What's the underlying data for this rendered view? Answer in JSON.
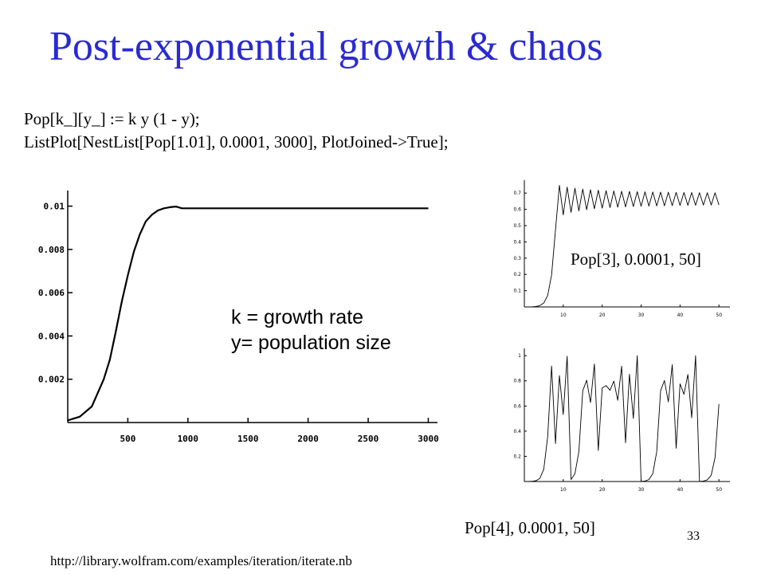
{
  "slide": {
    "title": "Post-exponential growth & chaos",
    "code_lines": [
      "Pop[k_][y_] := k y (1 - y);",
      "ListPlot[NestList[Pop[1.01], 0.0001, 3000], PlotJoined->True];"
    ],
    "note_lines": [
      "k = growth rate",
      "y= population size"
    ],
    "label_pop3": "Pop[3], 0.0001, 50]",
    "label_pop4": "Pop[4], 0.0001, 50]",
    "url": "http://library.wolfram.com/examples/iteration/iterate.nb",
    "slide_number": "33"
  },
  "chart_data": [
    {
      "type": "line",
      "title": "",
      "xlabel": "",
      "ylabel": "",
      "xlim": [
        0,
        3050
      ],
      "ylim": [
        0,
        0.0105
      ],
      "x_ticks": [
        500,
        1000,
        1500,
        2000,
        2500,
        3000
      ],
      "x_tick_labels": [
        "500",
        "1000",
        "1500",
        "2000",
        "2500",
        "3000"
      ],
      "y_ticks": [
        0.002,
        0.004,
        0.006,
        0.008,
        0.01
      ],
      "y_tick_labels": [
        "0.002",
        "0.004",
        "0.006",
        "0.008",
        "0.01"
      ],
      "series": [
        {
          "x": [
            0,
            100,
            200,
            300,
            350,
            400,
            450,
            500,
            550,
            600,
            650,
            700,
            750,
            800,
            850,
            900,
            950,
            1000,
            1100,
            1200,
            1500,
            2000,
            2500,
            3000
          ],
          "y": [
            0.0001,
            0.00027,
            0.00074,
            0.002,
            0.0029,
            0.0042,
            0.0056,
            0.0068,
            0.0079,
            0.0087,
            0.0093,
            0.0096,
            0.0098,
            0.0099,
            0.00995,
            0.00998,
            0.0099,
            0.0099,
            0.0099,
            0.0099,
            0.0099,
            0.0099,
            0.0099,
            0.0099
          ]
        }
      ],
      "grid": false
    },
    {
      "type": "line",
      "title": "",
      "xlim": [
        0,
        52
      ],
      "ylim": [
        0,
        0.75
      ],
      "x_ticks": [
        10,
        20,
        30,
        40,
        50
      ],
      "x_tick_labels": [
        "10",
        "20",
        "30",
        "40",
        "50"
      ],
      "y_ticks": [
        0.1,
        0.2,
        0.3,
        0.4,
        0.5,
        0.6,
        0.7
      ],
      "y_tick_labels": [
        "0.1",
        "0.2",
        "0.3",
        "0.4",
        "0.5",
        "0.6",
        "0.7"
      ],
      "series": [
        {
          "x": [
            0,
            1,
            2,
            3,
            4,
            5,
            6,
            7,
            8,
            9,
            10,
            11,
            12,
            13,
            14,
            15,
            16,
            17,
            18,
            19,
            20,
            21,
            22,
            23,
            24,
            25,
            26,
            27,
            28,
            29,
            30,
            31,
            32,
            33,
            34,
            35,
            36,
            37,
            38,
            39,
            40,
            41,
            42,
            43,
            44,
            45,
            46,
            47,
            48,
            49,
            50
          ],
          "y": [
            0.0001,
            0.0003,
            0.0009,
            0.0027,
            0.0081,
            0.0241,
            0.0706,
            0.197,
            0.4745,
            0.7479,
            0.5657,
            0.737,
            0.5815,
            0.7299,
            0.5909,
            0.7249,
            0.5982,
            0.7208,
            0.6036,
            0.7178,
            0.6074,
            0.7154,
            0.6106,
            0.7133,
            0.6131,
            0.7116,
            0.6152,
            0.7101,
            0.6171,
            0.7089,
            0.6186,
            0.7078,
            0.6199,
            0.7069,
            0.6211,
            0.706,
            0.6221,
            0.7053,
            0.623,
            0.7046,
            0.6238,
            0.704,
            0.6245,
            0.7035,
            0.6252,
            0.703,
            0.6258,
            0.7025,
            0.6263,
            0.7021,
            0.6268
          ]
        }
      ],
      "grid": false
    },
    {
      "type": "line",
      "title": "",
      "xlim": [
        0,
        52
      ],
      "ylim": [
        0,
        1.02
      ],
      "x_ticks": [
        10,
        20,
        30,
        40,
        50
      ],
      "x_tick_labels": [
        "10",
        "20",
        "30",
        "40",
        "50"
      ],
      "y_ticks": [
        0.2,
        0.4,
        0.6,
        0.8,
        1
      ],
      "y_tick_labels": [
        "0.2",
        "0.4",
        "0.6",
        "0.8",
        "1"
      ],
      "series": [
        {
          "x": [
            0,
            1,
            2,
            3,
            4,
            5,
            6,
            7,
            8,
            9,
            10,
            11,
            12,
            13,
            14,
            15,
            16,
            17,
            18,
            19,
            20,
            21,
            22,
            23,
            24,
            25,
            26,
            27,
            28,
            29,
            30,
            31,
            32,
            33,
            34,
            35,
            36,
            37,
            38,
            39,
            40,
            41,
            42,
            43,
            44,
            45,
            46,
            47,
            48,
            49,
            50
          ],
          "y": [
            0.0001,
            0.0004,
            0.0016,
            0.0064,
            0.0254,
            0.099,
            0.357,
            0.918,
            0.301,
            0.842,
            0.532,
            0.996,
            0.016,
            0.063,
            0.236,
            0.721,
            0.805,
            0.628,
            0.934,
            0.247,
            0.744,
            0.762,
            0.725,
            0.798,
            0.645,
            0.916,
            0.308,
            0.853,
            0.502,
            1.0,
            0.001,
            0.004,
            0.016,
            0.063,
            0.236,
            0.722,
            0.803,
            0.633,
            0.929,
            0.264,
            0.777,
            0.693,
            0.851,
            0.507,
            0.9998,
            0.0008,
            0.003,
            0.013,
            0.05,
            0.19,
            0.616
          ]
        }
      ],
      "grid": false
    }
  ]
}
